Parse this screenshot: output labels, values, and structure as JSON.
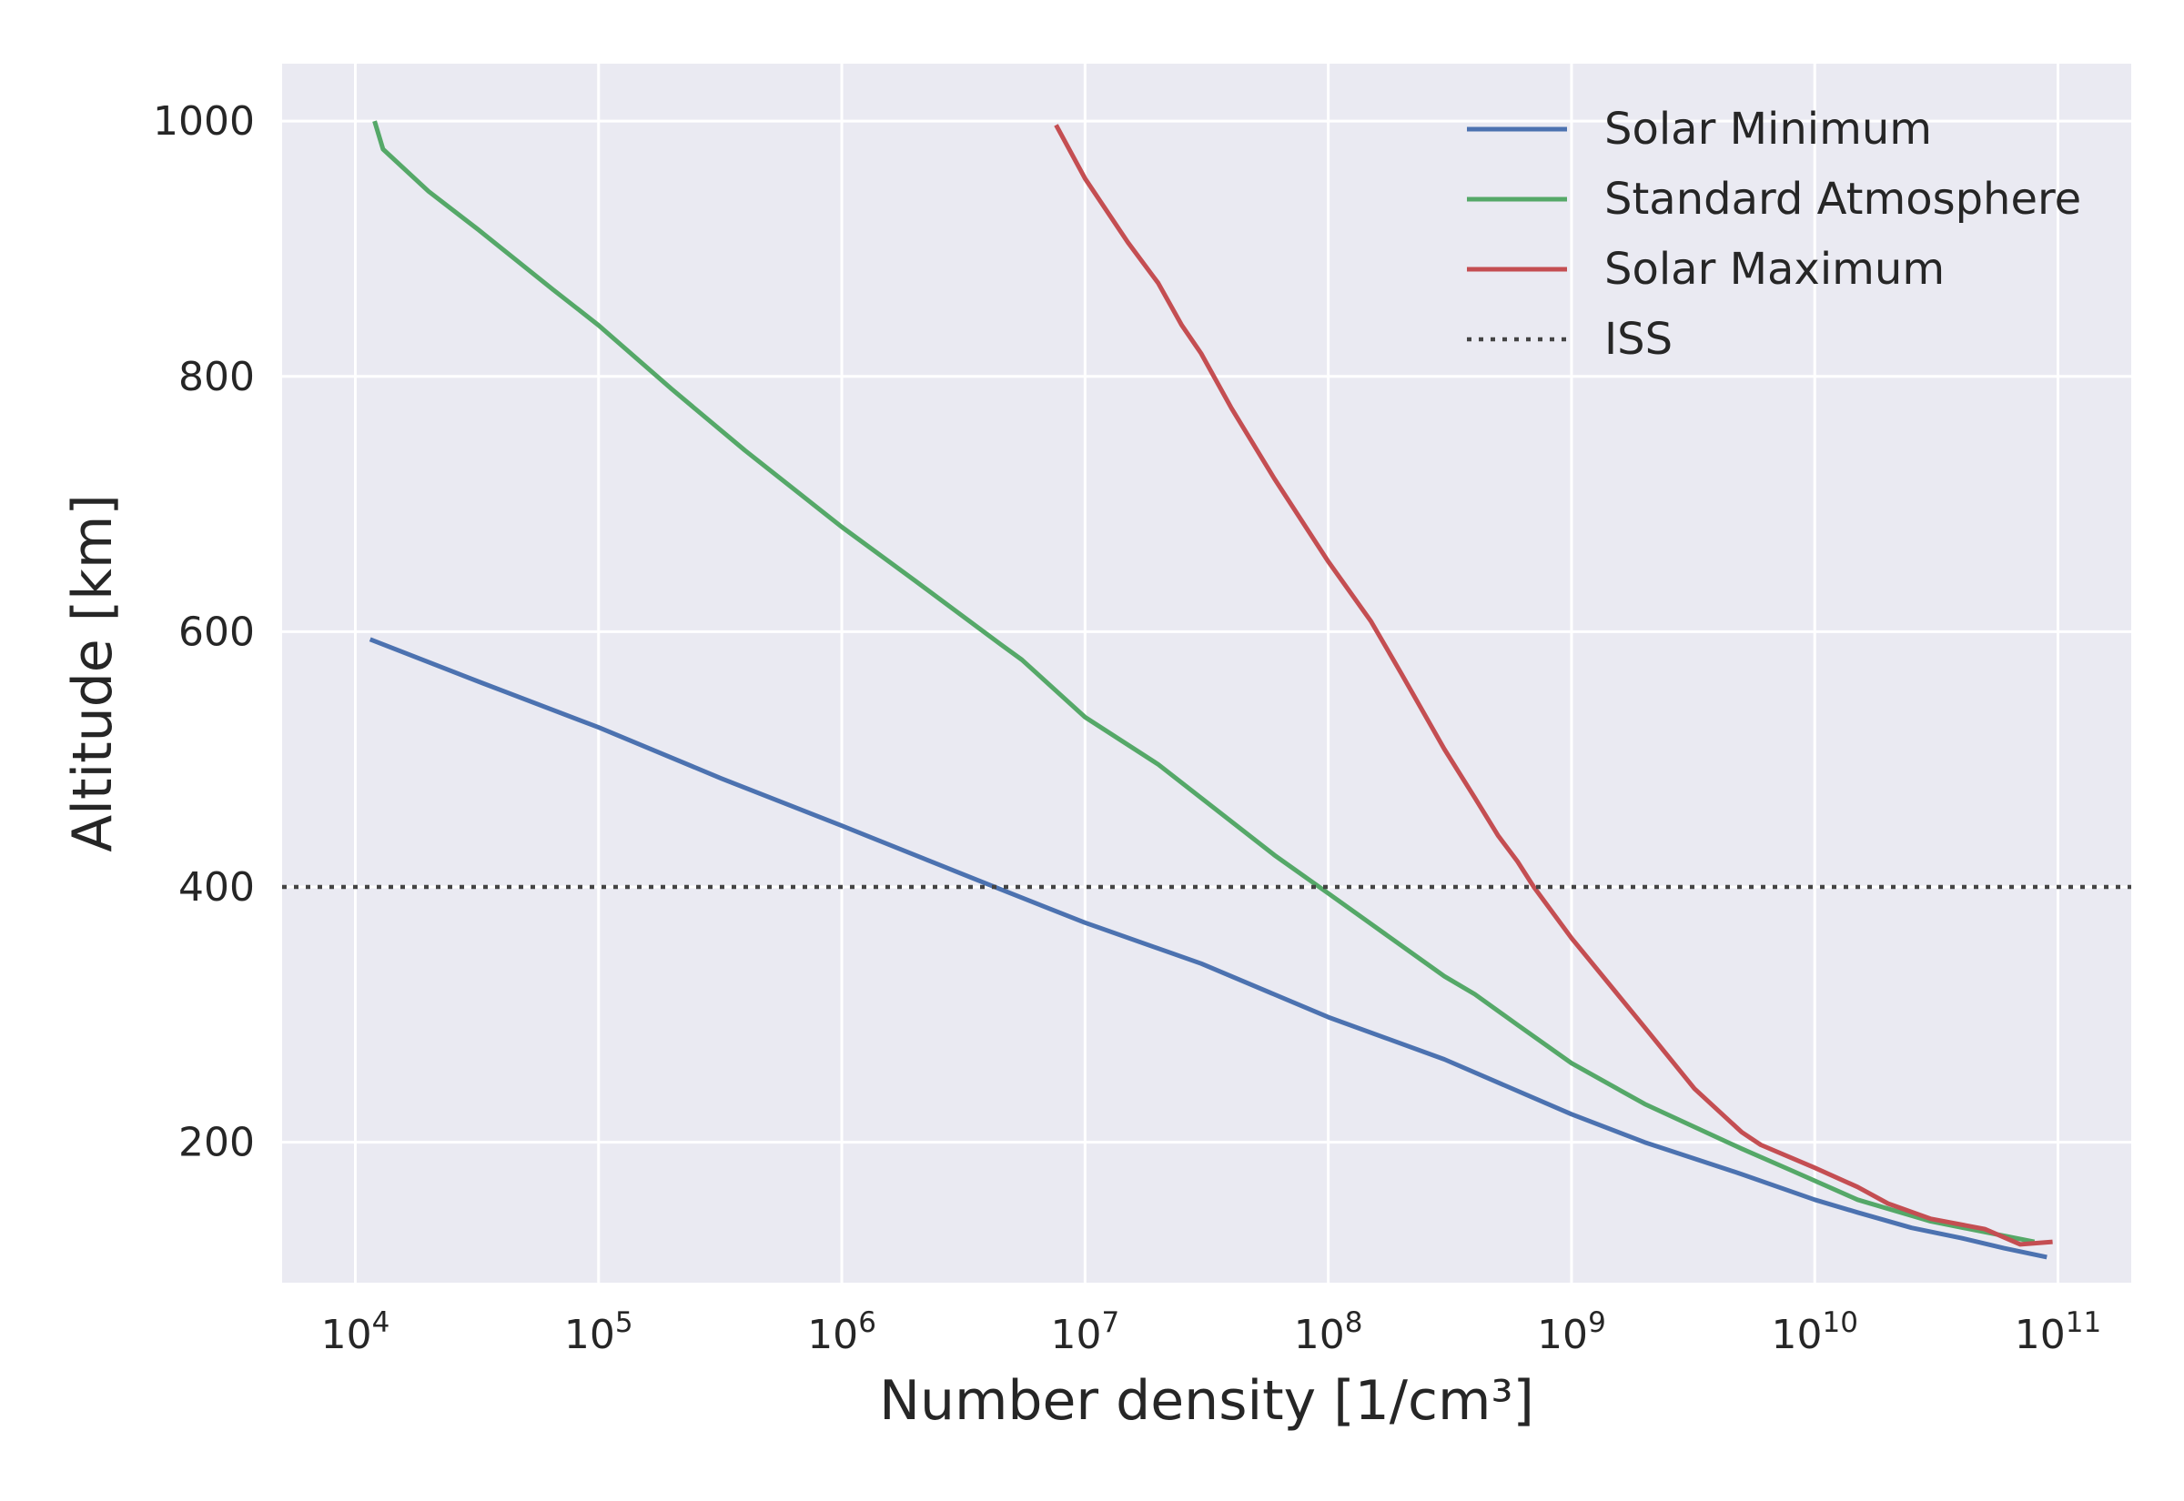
{
  "chart_data": {
    "type": "line",
    "xscale": "log",
    "xlabel": "Number density [1/cm³]",
    "ylabel": "Altitude [km]",
    "xlim": [
      5000,
      200000000000
    ],
    "ylim": [
      90,
      1045
    ],
    "grid": true,
    "legend_position": "top-right",
    "x_ticks": [
      {
        "value": 10000,
        "base": "10",
        "exp": "4"
      },
      {
        "value": 100000,
        "base": "10",
        "exp": "5"
      },
      {
        "value": 1000000,
        "base": "10",
        "exp": "6"
      },
      {
        "value": 10000000,
        "base": "10",
        "exp": "7"
      },
      {
        "value": 100000000,
        "base": "10",
        "exp": "8"
      },
      {
        "value": 1000000000,
        "base": "10",
        "exp": "9"
      },
      {
        "value": 10000000000,
        "base": "10",
        "exp": "10"
      },
      {
        "value": 100000000000,
        "base": "10",
        "exp": "11"
      }
    ],
    "y_ticks": [
      {
        "value": 200,
        "label": "200"
      },
      {
        "value": 400,
        "label": "400"
      },
      {
        "value": 600,
        "label": "600"
      },
      {
        "value": 800,
        "label": "800"
      },
      {
        "value": 1000,
        "label": "1000"
      }
    ],
    "series": [
      {
        "name": "Solar Minimum",
        "color": "#4c72b0",
        "style": "solid",
        "x": [
          11500,
          33000,
          100000,
          320000,
          1000000,
          4000000,
          10000000,
          30000000,
          100000000,
          300000000,
          1000000000,
          2000000000,
          5000000000,
          10000000000,
          15000000000,
          25000000000,
          40000000000,
          60000000000,
          90000000000
        ],
        "y": [
          594,
          560,
          525,
          485,
          448,
          402,
          372,
          340,
          298,
          265,
          222,
          200,
          175,
          155,
          145,
          133,
          125,
          117,
          110
        ]
      },
      {
        "name": "Standard Atmosphere",
        "color": "#55a868",
        "style": "solid",
        "x": [
          12000,
          13000,
          20000,
          32000,
          65000,
          100000,
          200000,
          400000,
          1000000,
          2000000,
          4500000,
          5500000,
          10000000,
          20000000,
          60000000,
          100000000,
          300000000,
          400000000,
          600000000,
          1000000000,
          2000000000,
          5000000000,
          8000000000,
          15000000000,
          30000000000,
          80000000000
        ],
        "y": [
          1000,
          978,
          945,
          915,
          868,
          840,
          790,
          742,
          682,
          640,
          590,
          578,
          533,
          496,
          425,
          395,
          330,
          316,
          292,
          262,
          230,
          195,
          178,
          155,
          138,
          122
        ]
      },
      {
        "name": "Solar Maximum",
        "color": "#c44e52",
        "style": "solid",
        "x": [
          7600000,
          10000000,
          15000000,
          20000000,
          25000000,
          30000000,
          40000000,
          60000000,
          100000000,
          150000000,
          200000000,
          300000000,
          400000000,
          500000000,
          600000000,
          700000000,
          1000000000,
          2000000000,
          3200000000,
          5000000000,
          6000000000,
          10000000000,
          15000000000,
          20000000000,
          30000000000,
          50000000000,
          70000000000,
          95000000000
        ],
        "y": [
          997,
          955,
          905,
          873,
          840,
          818,
          775,
          720,
          655,
          608,
          567,
          508,
          470,
          440,
          420,
          400,
          360,
          290,
          242,
          208,
          198,
          180,
          165,
          152,
          140,
          132,
          120,
          122
        ]
      },
      {
        "name": "ISS",
        "color": "#444444",
        "style": "dotted",
        "x": [
          5000,
          200000000000
        ],
        "y": [
          400,
          400
        ]
      }
    ]
  }
}
